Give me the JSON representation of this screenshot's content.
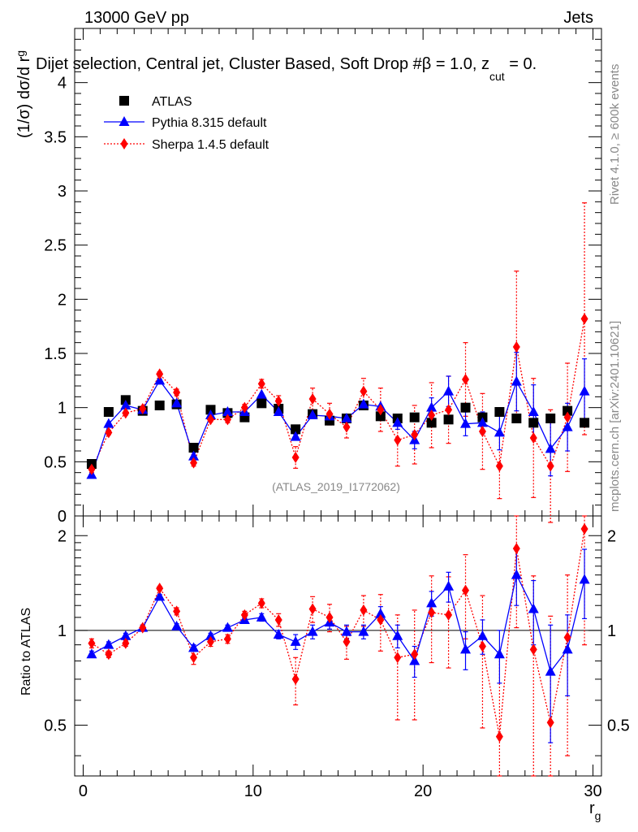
{
  "header": {
    "energy": "13000 GeV pp",
    "category": "Jets",
    "selection": "Dijet selection, Central jet, Cluster Based, Soft Drop #β = 1.0, z",
    "selection_sub": "cut",
    "selection_tail": " = 0.",
    "analysis_id": "(ATLAS_2019_I1772062)"
  },
  "side_text": {
    "rivet": "Rivet 4.1.0, ≥ 600k events",
    "mcplots": "mcplots.cern.ch [arXiv:2401.10621]"
  },
  "chart_data": [
    {
      "type": "scatter",
      "panel": "main",
      "ylabel_prefix": "(1/σ) dσ/d r",
      "ylabel_sub": "g",
      "ylim": [
        0,
        4.5
      ],
      "yticks": [
        0,
        0.5,
        1,
        1.5,
        2,
        2.5,
        3,
        3.5,
        4
      ],
      "ytick_labels": [
        "0",
        "0.5",
        "1",
        "1.5",
        "2",
        "2.5",
        "3",
        "3.5",
        "4"
      ],
      "xlim": [
        -0.5,
        30.5
      ],
      "x": [
        0.5,
        1.5,
        2.5,
        3.5,
        4.5,
        5.5,
        6.5,
        7.5,
        8.5,
        9.5,
        10.5,
        11.5,
        12.5,
        13.5,
        14.5,
        15.5,
        16.5,
        17.5,
        18.5,
        19.5,
        20.5,
        21.5,
        22.5,
        23.5,
        24.5,
        25.5,
        26.5,
        27.5,
        28.5,
        29.5
      ],
      "legend": [
        "ATLAS",
        "Pythia 8.315 default",
        "Sherpa 1.4.5 default"
      ],
      "series": [
        {
          "name": "ATLAS",
          "color": "#000000",
          "values": [
            0.48,
            0.96,
            1.07,
            0.97,
            1.02,
            1.03,
            0.63,
            0.98,
            0.95,
            0.91,
            1.04,
            0.99,
            0.8,
            0.94,
            0.88,
            0.9,
            1.02,
            0.92,
            0.9,
            0.91,
            0.86,
            0.89,
            1.0,
            0.91,
            0.96,
            0.9,
            0.86,
            0.9,
            0.97,
            0.86
          ]
        },
        {
          "name": "Pythia 8.315 default",
          "color": "#0000ff",
          "values": [
            0.38,
            0.85,
            1.02,
            0.98,
            1.25,
            1.04,
            0.55,
            0.93,
            0.96,
            0.96,
            1.12,
            0.96,
            0.73,
            0.93,
            0.92,
            0.9,
            1.03,
            1.01,
            0.86,
            0.7,
            1.0,
            1.15,
            0.85,
            0.86,
            0.77,
            1.24,
            0.96,
            0.62,
            0.82,
            1.15
          ],
          "errors": [
            0,
            0,
            0,
            0,
            0,
            0,
            0,
            0,
            0,
            0,
            0,
            0,
            0,
            0,
            0,
            0,
            0,
            0,
            0.06,
            0.08,
            0.09,
            0.14,
            0.11,
            0.1,
            0.16,
            0.27,
            0.25,
            0.25,
            0.22,
            0.3
          ]
        },
        {
          "name": "Sherpa 1.4.5 default",
          "color": "#ff0000",
          "values": [
            0.43,
            0.77,
            0.95,
            0.99,
            1.31,
            1.14,
            0.49,
            0.89,
            0.89,
            1.0,
            1.22,
            1.06,
            0.54,
            1.08,
            0.94,
            0.82,
            1.15,
            0.98,
            0.7,
            0.75,
            0.93,
            0.98,
            1.26,
            0.78,
            0.46,
            1.56,
            0.72,
            0.46,
            0.91,
            1.82
          ],
          "errors": [
            0.03,
            0.02,
            0.02,
            0.02,
            0.02,
            0.03,
            0.03,
            0.02,
            0.03,
            0.03,
            0.04,
            0.05,
            0.1,
            0.1,
            0.1,
            0.1,
            0.12,
            0.2,
            0.24,
            0.27,
            0.3,
            0.31,
            0.34,
            0.35,
            0.3,
            0.7,
            0.55,
            0.52,
            0.5,
            1.07
          ]
        }
      ]
    },
    {
      "type": "scatter",
      "panel": "ratio",
      "ylabel": "Ratio to ATLAS",
      "xlabel": "r",
      "xlabel_sub": "g",
      "ylim": [
        0.345,
        2.31
      ],
      "yticks": [
        0.5,
        1,
        2
      ],
      "ytick_labels": [
        "0.5",
        "1",
        "2"
      ],
      "xlim": [
        -0.5,
        30.5
      ],
      "xticks": [
        0,
        10,
        20,
        30
      ],
      "xtick_labels": [
        "0",
        "10",
        "20",
        "30"
      ],
      "reference_line": 1,
      "x": [
        0.5,
        1.5,
        2.5,
        3.5,
        4.5,
        5.5,
        6.5,
        7.5,
        8.5,
        9.5,
        10.5,
        11.5,
        12.5,
        13.5,
        14.5,
        15.5,
        16.5,
        17.5,
        18.5,
        19.5,
        20.5,
        21.5,
        22.5,
        23.5,
        24.5,
        25.5,
        26.5,
        27.5,
        28.5,
        29.5
      ],
      "series": [
        {
          "name": "Pythia 8.315 default",
          "color": "#0000ff",
          "values": [
            0.84,
            0.9,
            0.96,
            1.02,
            1.28,
            1.03,
            0.88,
            0.96,
            1.02,
            1.08,
            1.1,
            0.97,
            0.92,
            0.99,
            1.06,
            0.99,
            0.99,
            1.13,
            0.96,
            0.8,
            1.22,
            1.38,
            0.87,
            0.96,
            0.84,
            1.5,
            1.17,
            0.74,
            0.87,
            1.45
          ],
          "errors": [
            0.02,
            0.02,
            0.02,
            0.02,
            0.02,
            0.02,
            0.02,
            0.02,
            0.02,
            0.02,
            0.03,
            0.03,
            0.05,
            0.05,
            0.05,
            0.05,
            0.05,
            0.06,
            0.08,
            0.09,
            0.11,
            0.15,
            0.12,
            0.12,
            0.16,
            0.3,
            0.27,
            0.3,
            0.25,
            0.36
          ]
        },
        {
          "name": "Sherpa 1.4.5 default",
          "color": "#ff0000",
          "values": [
            0.91,
            0.84,
            0.91,
            1.02,
            1.36,
            1.15,
            0.82,
            0.92,
            0.94,
            1.12,
            1.22,
            1.08,
            0.7,
            1.17,
            1.1,
            0.92,
            1.16,
            1.08,
            0.82,
            0.84,
            1.14,
            1.12,
            1.34,
            0.89,
            0.46,
            1.82,
            0.87,
            0.51,
            0.95,
            2.1
          ],
          "errors": [
            0.03,
            0.02,
            0.02,
            0.02,
            0.02,
            0.03,
            0.04,
            0.03,
            0.03,
            0.03,
            0.04,
            0.05,
            0.12,
            0.11,
            0.11,
            0.11,
            0.13,
            0.22,
            0.3,
            0.32,
            0.35,
            0.36,
            0.4,
            0.4,
            0.38,
            0.8,
            0.62,
            0.6,
            0.55,
            1.2
          ]
        }
      ]
    }
  ]
}
